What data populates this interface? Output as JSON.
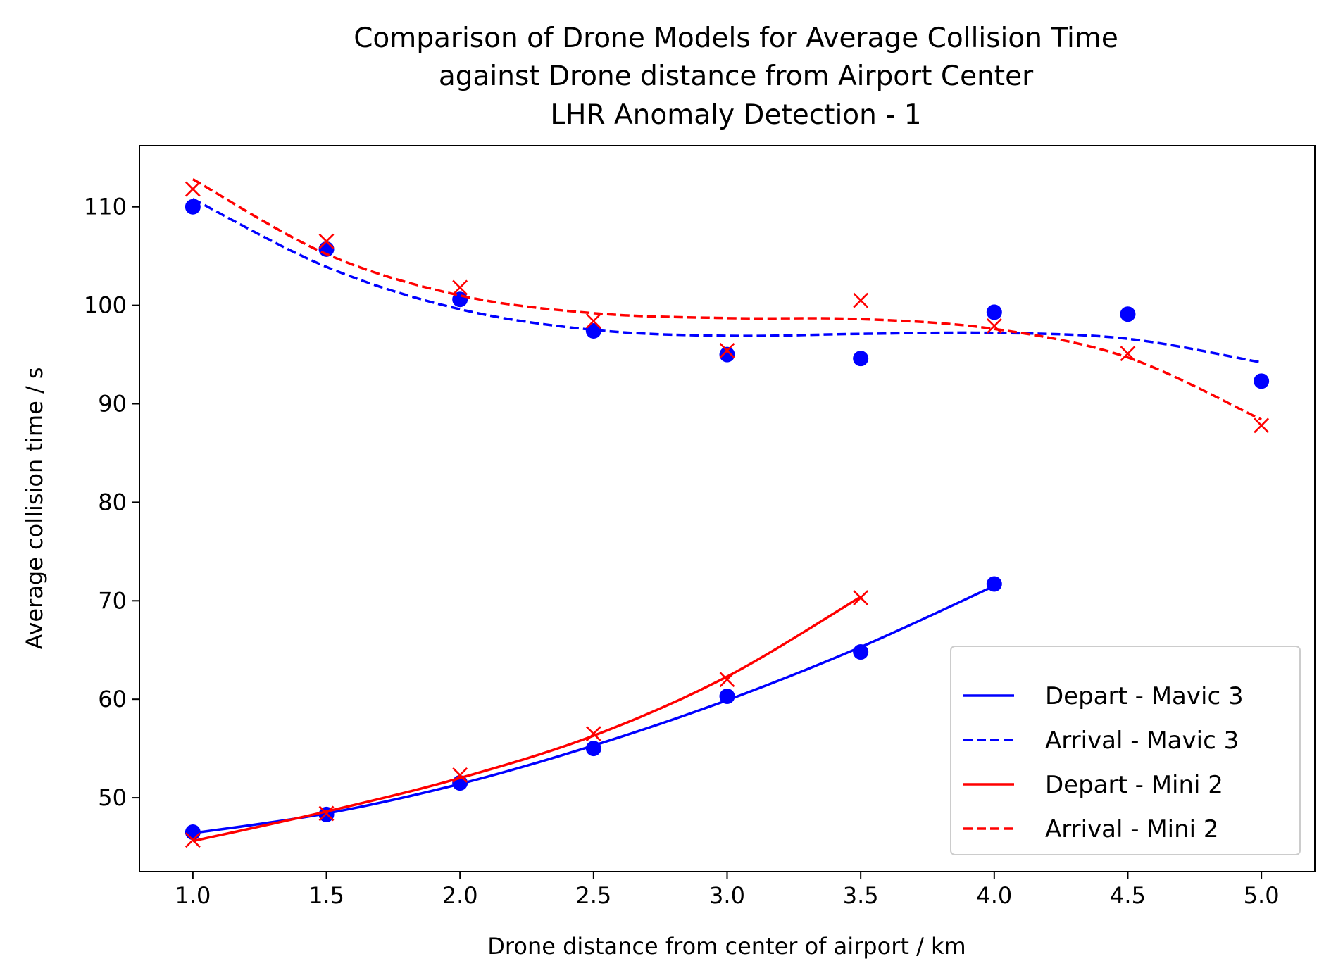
{
  "chart_data": {
    "type": "line",
    "title": [
      "Comparison of Drone Models for Average Collision Time",
      "against Drone distance from Airport Center",
      "LHR Anomaly Detection - 1"
    ],
    "xlabel": "Drone distance from center of airport / km",
    "ylabel": "Average collision time / s",
    "xlim": [
      0.8,
      5.2
    ],
    "ylim": [
      42.5,
      116.2
    ],
    "xticks": [
      1.0,
      1.5,
      2.0,
      2.5,
      3.0,
      3.5,
      4.0,
      4.5,
      5.0
    ],
    "xtick_labels": [
      "1.0",
      "1.5",
      "2.0",
      "2.5",
      "3.0",
      "3.5",
      "4.0",
      "4.5",
      "5.0"
    ],
    "yticks": [
      50,
      60,
      70,
      80,
      90,
      100,
      110
    ],
    "ytick_labels": [
      "50",
      "60",
      "70",
      "80",
      "90",
      "100",
      "110"
    ],
    "grid": false,
    "legend_position": "lower-right",
    "series": [
      {
        "name": "Depart - Mavic 3",
        "color": "#0000ff",
        "line_style": "solid",
        "marker": "circle",
        "x": [
          1.0,
          1.5,
          2.0,
          2.5,
          3.0,
          3.5,
          4.0
        ],
        "y": [
          46.5,
          48.3,
          51.5,
          55.0,
          60.3,
          64.8,
          71.7
        ],
        "fit_y": [
          46.4,
          48.4,
          51.4,
          55.3,
          59.9,
          65.3,
          71.5
        ]
      },
      {
        "name": "Arrival - Mavic 3",
        "color": "#0000ff",
        "line_style": "dashed",
        "marker": "circle",
        "x": [
          1.0,
          1.5,
          2.0,
          2.5,
          3.0,
          3.5,
          4.0,
          4.5,
          5.0
        ],
        "y": [
          110.0,
          105.7,
          100.6,
          97.4,
          95.0,
          94.6,
          99.3,
          99.1,
          92.3
        ],
        "fit_y": [
          110.8,
          103.9,
          99.6,
          97.5,
          96.9,
          97.1,
          97.2,
          96.6,
          94.2
        ]
      },
      {
        "name": "Depart - Mini 2",
        "color": "#ff0000",
        "line_style": "solid",
        "marker": "x",
        "x": [
          1.0,
          1.5,
          2.0,
          2.5,
          3.0,
          3.5
        ],
        "y": [
          45.7,
          48.4,
          52.3,
          56.5,
          62.0,
          70.3
        ],
        "fit_y": [
          45.6,
          48.6,
          52.0,
          56.3,
          62.3,
          70.4
        ]
      },
      {
        "name": "Arrival - Mini 2",
        "color": "#ff0000",
        "line_style": "dashed",
        "marker": "x",
        "x": [
          1.0,
          1.5,
          2.0,
          2.5,
          3.0,
          3.5,
          4.0,
          4.5,
          5.0
        ],
        "y": [
          111.8,
          106.5,
          101.8,
          98.4,
          95.4,
          100.5,
          97.9,
          95.1,
          87.8
        ],
        "fit_y": [
          112.8,
          105.2,
          101.0,
          99.2,
          98.7,
          98.6,
          97.6,
          94.7,
          88.4
        ]
      }
    ]
  }
}
